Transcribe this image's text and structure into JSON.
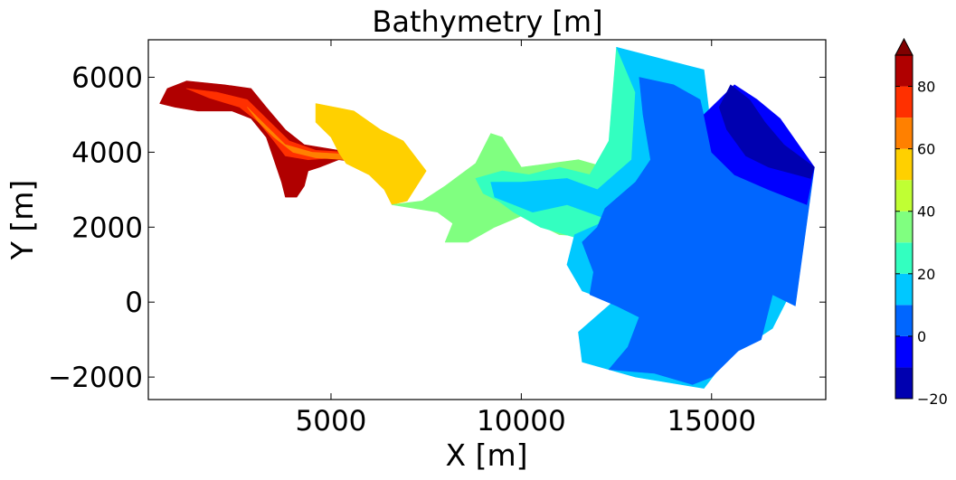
{
  "chart_data": {
    "type": "heatmap",
    "title": "Bathymetry [m]",
    "xlabel": "X [m]",
    "ylabel": "Y [m]",
    "xlim": [
      200,
      18000
    ],
    "ylim": [
      -2600,
      7000
    ],
    "x_ticks": [
      {
        "value": 5000,
        "label": "5000"
      },
      {
        "value": 10000,
        "label": "10000"
      },
      {
        "value": 15000,
        "label": "15000"
      }
    ],
    "y_ticks": [
      {
        "value": -2000,
        "label": "−2000"
      },
      {
        "value": 0,
        "label": "0"
      },
      {
        "value": 2000,
        "label": "2000"
      },
      {
        "value": 4000,
        "label": "4000"
      },
      {
        "value": 6000,
        "label": "6000"
      }
    ],
    "grid": false,
    "colorbar": {
      "range": [
        -20,
        90
      ],
      "extend": "max",
      "tick_labels": [
        {
          "value": -20,
          "label": "−20"
        },
        {
          "value": 0,
          "label": "0"
        },
        {
          "value": 20,
          "label": "20"
        },
        {
          "value": 40,
          "label": "40"
        },
        {
          "value": 60,
          "label": "60"
        },
        {
          "value": 80,
          "label": "80"
        }
      ],
      "levels": [
        {
          "min": -20,
          "max": -10,
          "color": "#0000b0"
        },
        {
          "min": -10,
          "max": 0,
          "color": "#0000ff"
        },
        {
          "min": 0,
          "max": 10,
          "color": "#0066ff"
        },
        {
          "min": 10,
          "max": 20,
          "color": "#00c8ff"
        },
        {
          "min": 20,
          "max": 30,
          "color": "#33ffc0"
        },
        {
          "min": 30,
          "max": 40,
          "color": "#80ff80"
        },
        {
          "min": 40,
          "max": 50,
          "color": "#c0ff33"
        },
        {
          "min": 50,
          "max": 60,
          "color": "#ffd000"
        },
        {
          "min": 60,
          "max": 70,
          "color": "#ff8000"
        },
        {
          "min": 70,
          "max": 80,
          "color": "#ff3000"
        },
        {
          "min": 80,
          "max": 90,
          "color": "#b00000"
        }
      ],
      "over_color": "#800000"
    },
    "regions": [
      {
        "level": 80,
        "points": [
          [
            700,
            5700
          ],
          [
            1200,
            5900
          ],
          [
            2200,
            5800
          ],
          [
            2900,
            5700
          ],
          [
            3300,
            5200
          ],
          [
            3800,
            4600
          ],
          [
            4300,
            4200
          ],
          [
            5200,
            4050
          ],
          [
            5500,
            4300
          ],
          [
            6100,
            4150
          ],
          [
            6600,
            3900
          ],
          [
            6500,
            3600
          ],
          [
            6000,
            3700
          ],
          [
            5200,
            3800
          ],
          [
            4700,
            3600
          ],
          [
            4400,
            3500
          ],
          [
            4300,
            3100
          ],
          [
            4100,
            2800
          ],
          [
            3800,
            2800
          ],
          [
            3700,
            3200
          ],
          [
            3500,
            3800
          ],
          [
            3300,
            4400
          ],
          [
            2900,
            4900
          ],
          [
            2400,
            5100
          ],
          [
            1500,
            5100
          ],
          [
            900,
            5200
          ],
          [
            500,
            5300
          ],
          [
            600,
            5500
          ]
        ]
      },
      {
        "level": 75,
        "points": [
          [
            1200,
            5700
          ],
          [
            2000,
            5600
          ],
          [
            2800,
            5400
          ],
          [
            3400,
            4800
          ],
          [
            3900,
            4300
          ],
          [
            4600,
            4050
          ],
          [
            5400,
            4000
          ],
          [
            6100,
            3950
          ],
          [
            6400,
            3750
          ],
          [
            5800,
            3700
          ],
          [
            5100,
            3850
          ],
          [
            4400,
            3800
          ],
          [
            3800,
            3900
          ],
          [
            3500,
            4300
          ],
          [
            3100,
            4800
          ],
          [
            2600,
            5200
          ],
          [
            1800,
            5450
          ]
        ]
      },
      {
        "level": 65,
        "points": [
          [
            2800,
            5200
          ],
          [
            3300,
            4700
          ],
          [
            3800,
            4200
          ],
          [
            4500,
            4000
          ],
          [
            5300,
            3950
          ],
          [
            6300,
            3950
          ],
          [
            7000,
            3600
          ],
          [
            7200,
            3200
          ],
          [
            6800,
            3300
          ],
          [
            6200,
            3600
          ],
          [
            5400,
            3800
          ],
          [
            4600,
            3850
          ],
          [
            4000,
            4000
          ],
          [
            3500,
            4400
          ],
          [
            3100,
            4800
          ]
        ]
      },
      {
        "level": 55,
        "points": [
          [
            4600,
            5300
          ],
          [
            5600,
            5100
          ],
          [
            6300,
            4600
          ],
          [
            6900,
            4300
          ],
          [
            7500,
            3500
          ],
          [
            7000,
            2700
          ],
          [
            6600,
            2600
          ],
          [
            6400,
            3000
          ],
          [
            6000,
            3400
          ],
          [
            5400,
            3700
          ],
          [
            5200,
            4000
          ],
          [
            5000,
            4400
          ],
          [
            4600,
            4800
          ]
        ]
      },
      {
        "level": 35,
        "points": [
          [
            6600,
            2600
          ],
          [
            7400,
            2700
          ],
          [
            8000,
            3100
          ],
          [
            8400,
            3400
          ],
          [
            8800,
            3700
          ],
          [
            9200,
            4500
          ],
          [
            9500,
            4400
          ],
          [
            10000,
            3600
          ],
          [
            11500,
            3800
          ],
          [
            12200,
            3600
          ],
          [
            12700,
            3000
          ],
          [
            13000,
            2000
          ],
          [
            12500,
            1700
          ],
          [
            11000,
            1800
          ],
          [
            10000,
            2300
          ],
          [
            9300,
            2000
          ],
          [
            8600,
            1600
          ],
          [
            8000,
            1600
          ],
          [
            8200,
            2100
          ],
          [
            7800,
            2400
          ],
          [
            7200,
            2500
          ]
        ]
      },
      {
        "level": 25,
        "points": [
          [
            8800,
            3300
          ],
          [
            9500,
            3500
          ],
          [
            10200,
            3400
          ],
          [
            11000,
            3600
          ],
          [
            11800,
            3400
          ],
          [
            12300,
            4300
          ],
          [
            12500,
            6800
          ],
          [
            14000,
            6300
          ],
          [
            14500,
            4000
          ],
          [
            13800,
            2000
          ],
          [
            12500,
            1200
          ],
          [
            11500,
            1700
          ],
          [
            10500,
            2000
          ],
          [
            9800,
            2400
          ],
          [
            9400,
            2700
          ],
          [
            9000,
            2900
          ]
        ]
      },
      {
        "level": 15,
        "points": [
          [
            9200,
            3200
          ],
          [
            10000,
            3200
          ],
          [
            11200,
            3300
          ],
          [
            12000,
            3000
          ],
          [
            12900,
            3800
          ],
          [
            13000,
            5600
          ],
          [
            12500,
            6800
          ],
          [
            14800,
            6200
          ],
          [
            15000,
            4500
          ],
          [
            15700,
            2000
          ],
          [
            16500,
            1000
          ],
          [
            17200,
            500
          ],
          [
            16600,
            -700
          ],
          [
            15400,
            -1500
          ],
          [
            14800,
            -2300
          ],
          [
            13000,
            -2000
          ],
          [
            11600,
            -1600
          ],
          [
            11500,
            -800
          ],
          [
            12400,
            0
          ],
          [
            11600,
            300
          ],
          [
            11200,
            1000
          ],
          [
            11400,
            1800
          ],
          [
            12300,
            2200
          ],
          [
            11200,
            2600
          ],
          [
            10300,
            2400
          ],
          [
            9800,
            2600
          ],
          [
            9300,
            2800
          ]
        ]
      },
      {
        "level": 5,
        "points": [
          [
            12200,
            2500
          ],
          [
            13000,
            3200
          ],
          [
            13400,
            3800
          ],
          [
            13200,
            5000
          ],
          [
            13100,
            6000
          ],
          [
            14000,
            5800
          ],
          [
            14700,
            5400
          ],
          [
            14900,
            4500
          ],
          [
            15500,
            3600
          ],
          [
            16700,
            3300
          ],
          [
            17700,
            3600
          ],
          [
            17200,
            -100
          ],
          [
            16600,
            200
          ],
          [
            16300,
            -1000
          ],
          [
            15700,
            -1300
          ],
          [
            15000,
            -2000
          ],
          [
            14500,
            -2200
          ],
          [
            13500,
            -1900
          ],
          [
            12300,
            -1800
          ],
          [
            12800,
            -1200
          ],
          [
            13100,
            -400
          ],
          [
            12500,
            -100
          ],
          [
            11800,
            200
          ],
          [
            11900,
            800
          ],
          [
            11600,
            1600
          ],
          [
            12000,
            2000
          ]
        ]
      },
      {
        "level": -5,
        "points": [
          [
            14800,
            5000
          ],
          [
            15200,
            5400
          ],
          [
            15600,
            5800
          ],
          [
            16200,
            5400
          ],
          [
            16800,
            4900
          ],
          [
            17700,
            3600
          ],
          [
            17500,
            2600
          ],
          [
            16500,
            3000
          ],
          [
            15600,
            3400
          ],
          [
            15000,
            4000
          ]
        ]
      },
      {
        "level": -15,
        "points": [
          [
            15500,
            5800
          ],
          [
            16000,
            5400
          ],
          [
            16400,
            4800
          ],
          [
            16900,
            4200
          ],
          [
            17700,
            3600
          ],
          [
            17600,
            3300
          ],
          [
            16500,
            3600
          ],
          [
            15900,
            3900
          ],
          [
            15400,
            4600
          ],
          [
            15200,
            5200
          ]
        ]
      }
    ]
  }
}
